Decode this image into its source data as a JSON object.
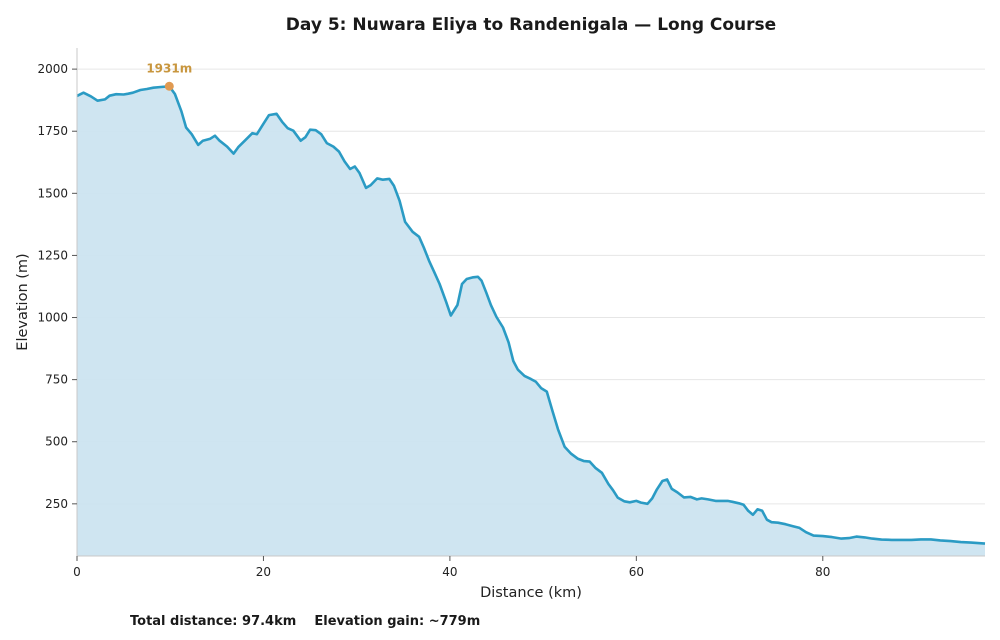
{
  "footer": {
    "distance": "Total distance: 97.4km",
    "gain": "Elevation gain: ~779m"
  },
  "colors": {
    "line": "#2b9bc4",
    "fill": "#cce4f0",
    "peak": "#e09a52",
    "peak_label": "#c8963e",
    "grid": "#e6e6e6"
  },
  "chart_data": {
    "type": "area",
    "title": "Day 5: Nuwara Eliya to Randenigala — Long Course",
    "xlabel": "Distance (km)",
    "ylabel": "Elevation (m)",
    "xlim": [
      0,
      97.4
    ],
    "ylim": [
      40,
      2085
    ],
    "xticks": [
      0,
      20,
      40,
      60,
      80
    ],
    "yticks": [
      250,
      500,
      750,
      1000,
      1250,
      1500,
      1750,
      2000
    ],
    "grid": "horizontal",
    "peak": {
      "x": 9.9,
      "y": 1931,
      "label": "1931m"
    },
    "series": [
      {
        "x": [
          0,
          0.7,
          1.5,
          2.2,
          3,
          3.5,
          4.2,
          5,
          5.5,
          6,
          6.8,
          7.5,
          8.2,
          9,
          9.9,
          10.5,
          11.2,
          11.7,
          12.3,
          13,
          13.5,
          14.3,
          14.8,
          15.3,
          16.1,
          16.8,
          17.3,
          18,
          18.8,
          19.3,
          20,
          20.6,
          21.4,
          22,
          22.6,
          23.2,
          24,
          24.5,
          25,
          25.6,
          26.2,
          26.8,
          27.5,
          28.1,
          28.7,
          29.3,
          29.8,
          30.3,
          31,
          31.5,
          32.2,
          32.8,
          33.5,
          34,
          34.6,
          35.2,
          36,
          36.7,
          37.2,
          37.8,
          38.3,
          38.9,
          39.6,
          40.1,
          40.8,
          41.3,
          41.8,
          42.5,
          43,
          43.4,
          43.9,
          44.4,
          45,
          45.7,
          46.3,
          46.8,
          47.3,
          48,
          48.7,
          49.2,
          49.8,
          50.4,
          51,
          51.6,
          52.3,
          53,
          53.7,
          54.4,
          55,
          55.6,
          56.3,
          57,
          57.5,
          58,
          58.7,
          59.3,
          60,
          60.5,
          61.2,
          61.7,
          62.2,
          62.8,
          63.3,
          63.8,
          64.4,
          65.1,
          65.8,
          66.5,
          67,
          67.7,
          68.5,
          69,
          69.8,
          70.3,
          71,
          71.5,
          72,
          72.5,
          73,
          73.5,
          74,
          74.5,
          75.2,
          76,
          76.8,
          77.5,
          78.2,
          79,
          80,
          81,
          82,
          82.8,
          83.6,
          84.5,
          85.3,
          86.3,
          87.4,
          88.6,
          89.5,
          90.5,
          91.6,
          92.6,
          93.7,
          94.8,
          95.9,
          97.4
        ],
        "y": [
          1892,
          1905,
          1890,
          1873,
          1878,
          1893,
          1899,
          1898,
          1901,
          1905,
          1916,
          1920,
          1925,
          1928,
          1931,
          1900,
          1830,
          1765,
          1738,
          1695,
          1712,
          1720,
          1732,
          1712,
          1688,
          1660,
          1686,
          1712,
          1742,
          1738,
          1780,
          1815,
          1820,
          1788,
          1762,
          1752,
          1712,
          1726,
          1756,
          1754,
          1738,
          1702,
          1688,
          1668,
          1628,
          1598,
          1608,
          1582,
          1522,
          1533,
          1560,
          1555,
          1558,
          1530,
          1470,
          1385,
          1345,
          1325,
          1282,
          1225,
          1185,
          1135,
          1062,
          1008,
          1050,
          1135,
          1155,
          1162,
          1164,
          1148,
          1100,
          1050,
          1002,
          960,
          900,
          825,
          790,
          765,
          752,
          742,
          715,
          702,
          625,
          550,
          480,
          452,
          432,
          422,
          420,
          395,
          375,
          330,
          305,
          275,
          260,
          256,
          262,
          255,
          250,
          272,
          308,
          342,
          348,
          310,
          296,
          276,
          278,
          268,
          272,
          268,
          262,
          262,
          262,
          258,
          252,
          246,
          222,
          206,
          228,
          222,
          186,
          176,
          174,
          168,
          160,
          153,
          136,
          122,
          120,
          116,
          110,
          112,
          118,
          115,
          110,
          106,
          105,
          105,
          105,
          107,
          107,
          103,
          100,
          96,
          94,
          90
        ]
      }
    ]
  }
}
